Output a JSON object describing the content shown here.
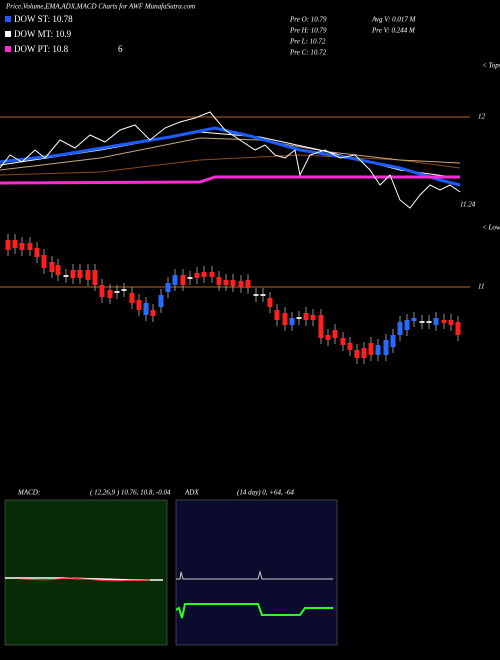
{
  "header": {
    "title": "Price,Volume,EMA,ADX,MACD Charts for AWF MunafaSutra.com",
    "legend": [
      "DOW ST: 10.78",
      "DOW MT: 10.9",
      "DOW PT: 10.8"
    ],
    "extra": "6"
  },
  "stats": {
    "left": [
      "Pre  O: 10.79",
      "Pre  H: 10.79",
      "Pre  L: 10.72",
      "Pre  C: 10.72"
    ],
    "right": [
      "Avg V: 0.017 M",
      "Pre  V: 0.244  M"
    ]
  },
  "markers": {
    "tops": "< Tops",
    "lows": "< Lows"
  },
  "price_labels": {
    "upper": "12",
    "middle": "11.24",
    "lower": "11"
  },
  "macd": {
    "title": "MACD:",
    "params": "( 12,26,9 ) 10.76, 10.8, -0.04"
  },
  "adx": {
    "title": "ADX",
    "params": "(14  day) 0, +64, -64"
  }
}
